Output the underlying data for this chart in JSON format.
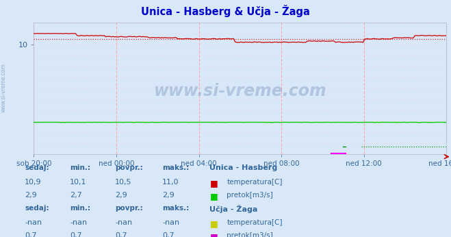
{
  "title": "Unica - Hasberg & Učja - Žaga",
  "title_color": "#0000cc",
  "bg_color": "#d8e8f8",
  "plot_bg_color": "#d8e8f8",
  "ylim": [
    0,
    12.0
  ],
  "ytick_vals": [
    10
  ],
  "xtick_labels": [
    "sob 20:00",
    "ned 00:00",
    "ned 04:00",
    "ned 08:00",
    "ned 12:00",
    "ned 16:00"
  ],
  "n_points": 288,
  "temp_unica_avg": 10.5,
  "temp_color": "#cc0000",
  "pretok_unica_color": "#00cc00",
  "pretok_ucja_color": "#cc00cc",
  "ucja_pretok_color_dot": "#008800",
  "watermark": "www.si-vreme.com",
  "watermark_color": "#5577aa",
  "table_color": "#336699",
  "unica_label": "Unica - Hasberg",
  "ucja_label": "Učja - Žaga",
  "headers": [
    "sedaj:",
    "min.:",
    "povpr.:",
    "maks.:"
  ],
  "unica_temp_row": [
    "10,9",
    "10,1",
    "10,5",
    "11,0"
  ],
  "unica_pretok_row": [
    "2,9",
    "2,7",
    "2,9",
    "2,9"
  ],
  "ucja_temp_row": [
    "-nan",
    "-nan",
    "-nan",
    "-nan"
  ],
  "ucja_pretok_row": [
    "0,7",
    "0,7",
    "0,7",
    "0,7"
  ],
  "temp_legend": "temperatura[C]",
  "pretok_legend": "pretok[m3/s]",
  "unica_temp_color": "#cc0000",
  "unica_pretok_color": "#00cc00",
  "ucja_temp_color": "#cccc00",
  "ucja_pretok_color": "#cc00cc",
  "side_label": "www.si-vreme.com"
}
